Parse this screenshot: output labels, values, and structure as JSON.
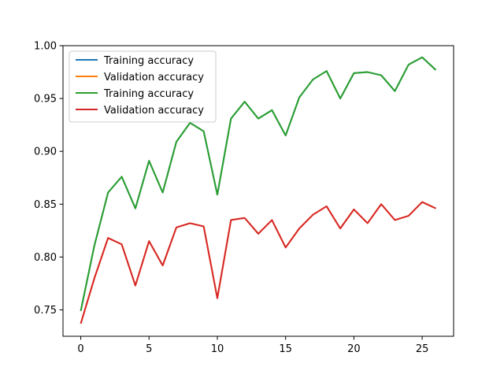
{
  "chart_data": {
    "type": "line",
    "title": "",
    "xlabel": "",
    "ylabel": "",
    "xlim": [
      -1.3,
      27.3
    ],
    "ylim": [
      0.725,
      1.0
    ],
    "xticks": [
      0,
      5,
      10,
      15,
      20,
      25
    ],
    "xtick_labels": [
      "0",
      "5",
      "10",
      "15",
      "20",
      "25"
    ],
    "yticks": [
      0.75,
      0.8,
      0.85,
      0.9,
      0.95,
      1.0
    ],
    "ytick_labels": [
      "0.75",
      "0.80",
      "0.85",
      "0.90",
      "0.95",
      "1.00"
    ],
    "grid": false,
    "legend_position": "upper-left",
    "x": [
      0,
      1,
      2,
      3,
      4,
      5,
      6,
      7,
      8,
      9,
      10,
      11,
      12,
      13,
      14,
      15,
      16,
      17,
      18,
      19,
      20,
      21,
      22,
      23,
      24,
      25,
      26
    ],
    "series": [
      {
        "name": "Training accuracy",
        "color": "#1f77b4",
        "values": [
          0.749,
          0.811,
          0.861,
          0.876,
          0.846,
          0.891,
          0.861,
          0.909,
          0.927,
          0.919,
          0.859,
          0.931,
          0.947,
          0.931,
          0.939,
          0.915,
          0.951,
          0.968,
          0.976,
          0.95,
          0.974,
          0.975,
          0.972,
          0.957,
          0.982,
          0.989,
          0.977
        ]
      },
      {
        "name": "Validation accuracy",
        "color": "#ff7f0e",
        "values": [
          0.737,
          0.78,
          0.818,
          0.812,
          0.773,
          0.815,
          0.792,
          0.828,
          0.832,
          0.829,
          0.761,
          0.835,
          0.837,
          0.822,
          0.835,
          0.809,
          0.827,
          0.84,
          0.848,
          0.827,
          0.845,
          0.832,
          0.85,
          0.835,
          0.839,
          0.852,
          0.846
        ]
      },
      {
        "name": "Training accuracy",
        "color": "#2ca02c",
        "values": [
          0.749,
          0.811,
          0.861,
          0.876,
          0.846,
          0.891,
          0.861,
          0.909,
          0.927,
          0.919,
          0.859,
          0.931,
          0.947,
          0.931,
          0.939,
          0.915,
          0.951,
          0.968,
          0.976,
          0.95,
          0.974,
          0.975,
          0.972,
          0.957,
          0.982,
          0.989,
          0.977
        ]
      },
      {
        "name": "Validation accuracy",
        "color": "#d62728",
        "values": [
          0.737,
          0.78,
          0.818,
          0.812,
          0.773,
          0.815,
          0.792,
          0.828,
          0.832,
          0.829,
          0.761,
          0.835,
          0.837,
          0.822,
          0.835,
          0.809,
          0.827,
          0.84,
          0.848,
          0.827,
          0.845,
          0.832,
          0.85,
          0.835,
          0.839,
          0.852,
          0.846
        ]
      }
    ]
  }
}
